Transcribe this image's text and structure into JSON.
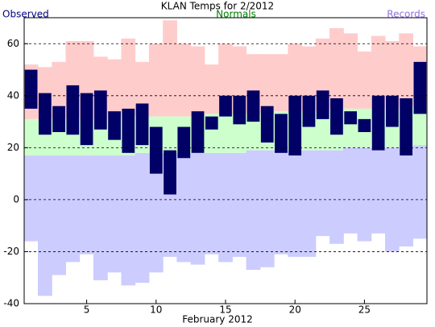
{
  "chart_data": {
    "type": "range-bar",
    "title": "KLAN Temps for 2/2012",
    "x_label": "February 2012",
    "x": [
      1,
      2,
      3,
      4,
      5,
      6,
      7,
      8,
      9,
      10,
      11,
      12,
      13,
      14,
      15,
      16,
      17,
      18,
      19,
      20,
      21,
      22,
      23,
      24,
      25,
      26,
      27,
      28,
      29
    ],
    "xlim": [
      0.5,
      29.5
    ],
    "xticks": [
      5,
      10,
      15,
      20,
      25
    ],
    "ylim": [
      -40,
      70
    ],
    "yticks": [
      -40,
      -20,
      0,
      20,
      40,
      60
    ],
    "grid": true,
    "series": [
      {
        "name": "Observed",
        "color": "#000066",
        "label_color": "#000080",
        "low": [
          35,
          25,
          26,
          25,
          21,
          27,
          23,
          18,
          21,
          10,
          2,
          16,
          18,
          27,
          32,
          29,
          30,
          22,
          18,
          17,
          28,
          31,
          25,
          29,
          26,
          19,
          28,
          17,
          33
        ],
        "high": [
          50,
          41,
          36,
          44,
          41,
          42,
          34,
          35,
          37,
          28,
          19,
          28,
          34,
          32,
          40,
          40,
          42,
          36,
          33,
          40,
          40,
          42,
          39,
          34,
          31,
          40,
          40,
          39,
          53
        ]
      },
      {
        "name": "Normals",
        "color": "#ccffcc",
        "label_color": "#008000",
        "low": [
          17,
          17,
          17,
          17,
          17,
          17,
          17,
          17,
          18,
          18,
          18,
          18,
          18,
          18,
          18,
          18,
          19,
          19,
          19,
          19,
          19,
          19,
          19,
          20,
          20,
          20,
          20,
          20,
          21
        ],
        "high": [
          31,
          31,
          31,
          31,
          31,
          31,
          31,
          32,
          32,
          32,
          32,
          32,
          32,
          33,
          33,
          33,
          33,
          33,
          34,
          34,
          34,
          34,
          35,
          35,
          35,
          35,
          35,
          36,
          36
        ]
      },
      {
        "name": "Records",
        "color": "#ffcccc",
        "low_color": "#ccccff",
        "label_color": "#9370db",
        "low": [
          -16,
          -37,
          -29,
          -24,
          -21,
          -31,
          -28,
          -33,
          -32,
          -28,
          -22,
          -24,
          -25,
          -21,
          -24,
          -22,
          -27,
          -26,
          -21,
          -22,
          -22,
          -14,
          -17,
          -13,
          -16,
          -13,
          -20,
          -18,
          -15
        ],
        "high": [
          52,
          51,
          53,
          61,
          61,
          55,
          54,
          62,
          53,
          60,
          69,
          60,
          59,
          52,
          60,
          59,
          56,
          56,
          56,
          60,
          59,
          62,
          66,
          64,
          57,
          63,
          61,
          64,
          59
        ]
      }
    ]
  }
}
